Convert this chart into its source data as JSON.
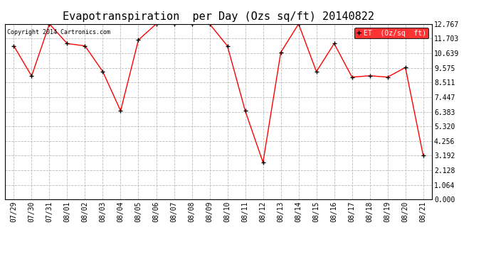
{
  "title": "Evapotranspiration  per Day (Ozs sq/ft) 20140822",
  "copyright_text": "Copyright 2014 Cartronics.com",
  "legend_label": "ET  (0z/sq  ft)",
  "x_labels": [
    "07/29",
    "07/30",
    "07/31",
    "08/01",
    "08/02",
    "08/03",
    "08/04",
    "08/05",
    "08/06",
    "08/07",
    "08/08",
    "08/09",
    "08/10",
    "08/11",
    "08/12",
    "08/13",
    "08/14",
    "08/15",
    "08/16",
    "08/17",
    "08/18",
    "08/19",
    "08/20",
    "08/21"
  ],
  "y_values": [
    11.17,
    8.98,
    12.767,
    11.34,
    11.17,
    9.3,
    6.45,
    11.6,
    12.767,
    12.767,
    12.767,
    12.767,
    11.17,
    6.45,
    2.7,
    10.7,
    12.767,
    9.3,
    11.34,
    8.9,
    9.0,
    8.9,
    9.6,
    3.2
  ],
  "ylim": [
    0.0,
    12.767
  ],
  "yticks": [
    0.0,
    1.064,
    2.128,
    3.192,
    4.256,
    5.32,
    6.383,
    7.447,
    8.511,
    9.575,
    10.639,
    11.703,
    12.767
  ],
  "line_color": "red",
  "marker_color": "black",
  "bg_color": "white",
  "grid_color": "#bbbbbb",
  "title_fontsize": 11,
  "tick_fontsize": 7,
  "copyright_fontsize": 6,
  "legend_bg": "red",
  "legend_fg": "white"
}
